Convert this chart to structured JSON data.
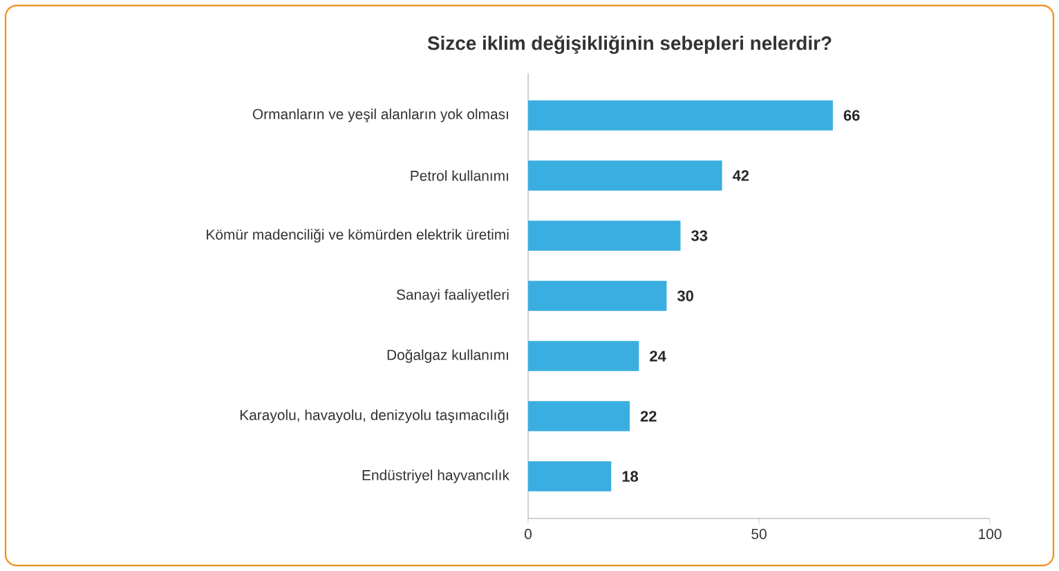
{
  "chart_data": {
    "type": "bar",
    "orientation": "horizontal",
    "title": "Sizce iklim değişikliğinin sebepleri nelerdir?",
    "categories": [
      "Ormanların ve yeşil alanların yok olması",
      "Petrol kullanımı",
      "Kömür madenciliği ve kömürden elektrik üretimi",
      "Sanayi faaliyetleri",
      "Doğalgaz kullanımı",
      "Karayolu, havayolu, denizyolu taşımacılığı",
      "Endüstriyel hayvancılık"
    ],
    "values": [
      66,
      42,
      33,
      30,
      24,
      22,
      18
    ],
    "color": "#3aaee0",
    "xlim": [
      0,
      100
    ],
    "xticks": [
      0,
      50,
      100
    ],
    "data_labels": true
  }
}
